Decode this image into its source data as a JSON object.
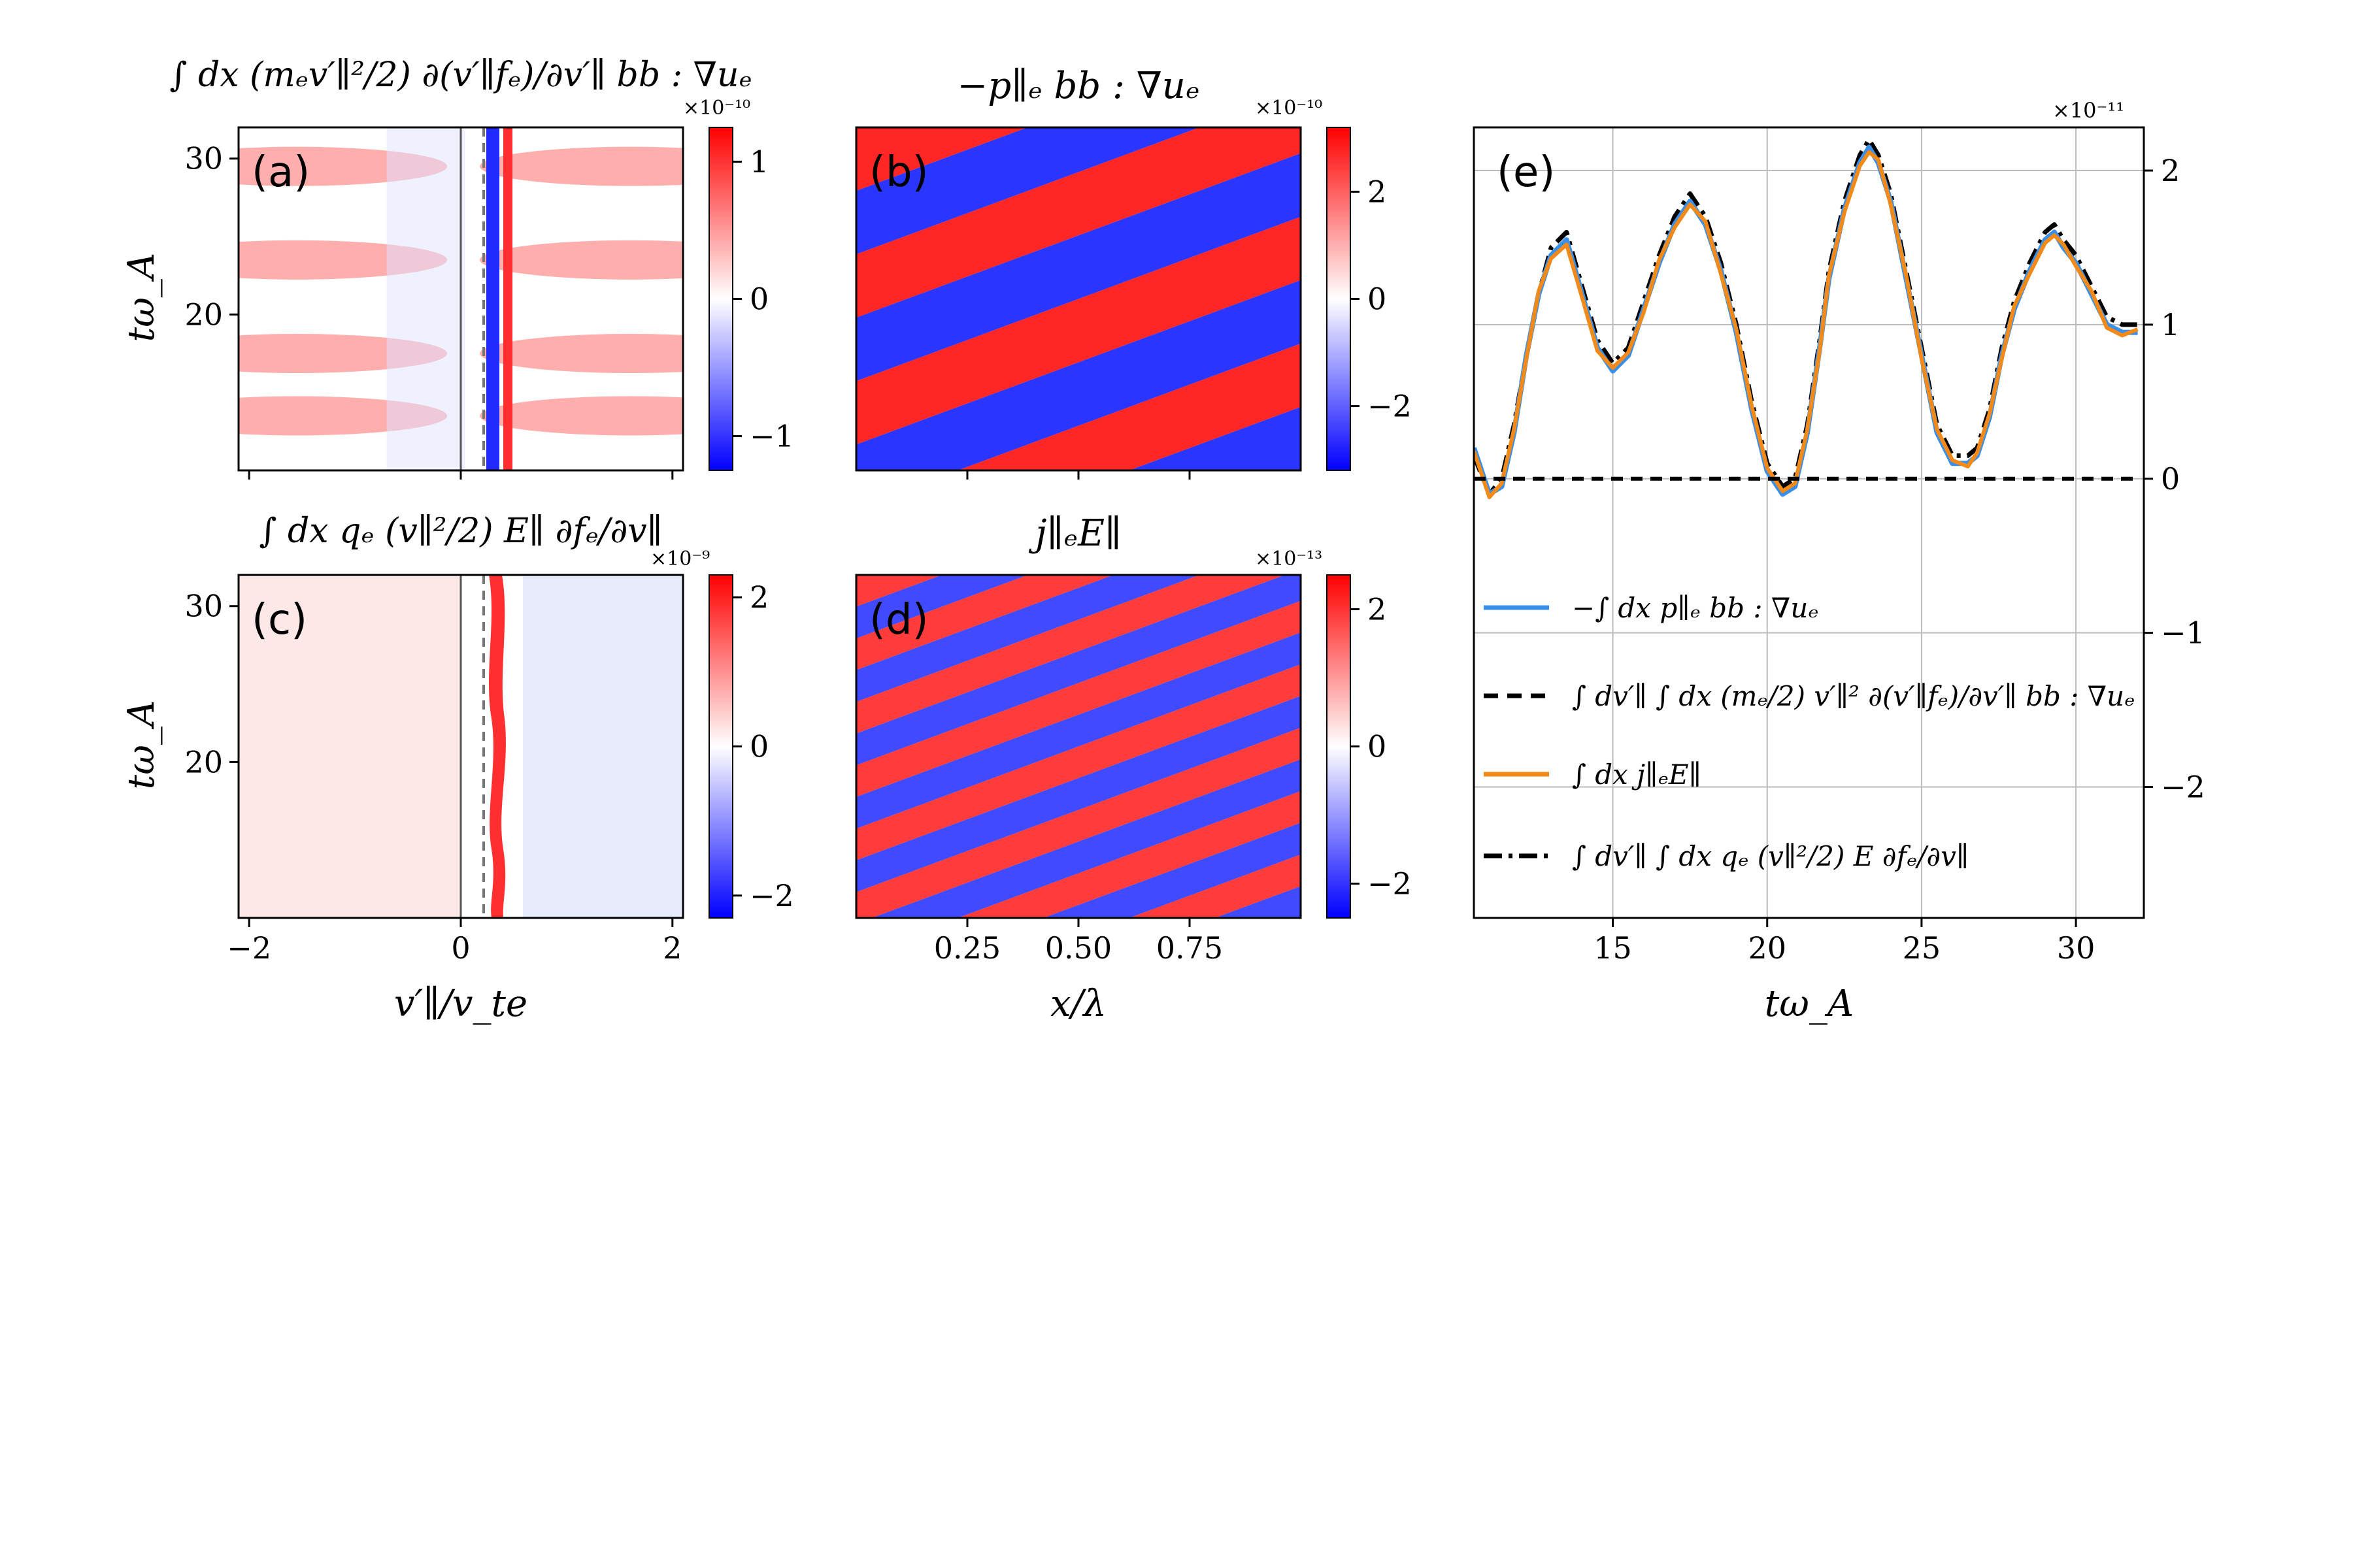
{
  "chart_data": [
    {
      "panel_label": "(a)",
      "type": "heatmap",
      "title": "∫ dx (mₑv′∥²/2) ∂(v′∥fₑ)/∂v′∥ bb : ∇uₑ",
      "xlabel": "",
      "ylabel": "tω_A",
      "xlim": [
        -2.1,
        2.1
      ],
      "ylim": [
        10,
        32
      ],
      "xticks": [
        -2,
        0,
        2
      ],
      "yticks": [
        20,
        30
      ],
      "xtick_labels": [
        "",
        "",
        ""
      ],
      "ytick_labels": [
        "20",
        "30"
      ],
      "colorbar": {
        "min": -1.25,
        "max": 1.25,
        "ticks": [
          -1,
          0,
          1
        ],
        "tick_labels": [
          "−1",
          "0",
          "1"
        ],
        "exponent_label": "×10⁻¹⁰",
        "colormap": "bwr"
      },
      "vlines": [
        {
          "x": 0,
          "style": "solid"
        },
        {
          "x": 0.25,
          "style": "dashed"
        }
      ],
      "peaks_t": [
        13.5,
        17.5,
        23.5,
        29.5
      ],
      "bands": [
        {
          "x_center": 0.33,
          "value_sign": -1
        },
        {
          "x_center": 0.45,
          "value_sign": 1
        }
      ]
    },
    {
      "panel_label": "(b)",
      "type": "heatmap",
      "title": "−p∥ₑ bb : ∇uₑ",
      "xlabel": "",
      "ylabel": "",
      "xlim": [
        0,
        1
      ],
      "ylim": [
        10,
        32
      ],
      "xticks": [
        0.25,
        0.5,
        0.75
      ],
      "xtick_labels": [
        "",
        "",
        ""
      ],
      "colorbar": {
        "min": -3.2,
        "max": 3.2,
        "ticks": [
          -2,
          0,
          2
        ],
        "tick_labels": [
          "−2",
          "0",
          "2"
        ],
        "exponent_label": "×10⁻¹⁰",
        "colormap": "bwr"
      },
      "pattern": {
        "kind": "oblique_stripes",
        "stripe_periods_visible": 4
      }
    },
    {
      "panel_label": "(c)",
      "type": "heatmap",
      "title": "∫ dx qₑ (v∥²/2) E∥ ∂fₑ/∂v∥",
      "xlabel": "v′∥/v_te",
      "ylabel": "tω_A",
      "xlim": [
        -2.1,
        2.1
      ],
      "ylim": [
        10,
        32
      ],
      "xticks": [
        -2,
        0,
        2
      ],
      "yticks": [
        20,
        30
      ],
      "xtick_labels": [
        "−2",
        "0",
        "2"
      ],
      "ytick_labels": [
        "20",
        "30"
      ],
      "colorbar": {
        "min": -2.3,
        "max": 2.3,
        "ticks": [
          -2,
          0,
          2
        ],
        "tick_labels": [
          "−2",
          "0",
          "2"
        ],
        "exponent_label": "×10⁻⁹",
        "colormap": "bwr"
      },
      "vlines": [
        {
          "x": 0,
          "style": "solid"
        },
        {
          "x": 0.25,
          "style": "dashed"
        }
      ],
      "bands": [
        {
          "x_center": 0.33,
          "value_sign": 1
        }
      ]
    },
    {
      "panel_label": "(d)",
      "type": "heatmap",
      "title": "j∥ₑE∥",
      "xlabel": "x/λ",
      "ylabel": "",
      "xlim": [
        0,
        1
      ],
      "ylim": [
        10,
        32
      ],
      "xticks": [
        0.25,
        0.5,
        0.75
      ],
      "xtick_labels": [
        "0.25",
        "0.50",
        "0.75"
      ],
      "colorbar": {
        "min": -2.5,
        "max": 2.5,
        "ticks": [
          -2,
          0,
          2
        ],
        "tick_labels": [
          "−2",
          "0",
          "2"
        ],
        "exponent_label": "×10⁻¹³",
        "colormap": "bwr"
      },
      "pattern": {
        "kind": "oblique_stripes",
        "stripe_periods_visible": 8
      }
    },
    {
      "panel_label": "(e)",
      "type": "line",
      "xlabel": "tω_A",
      "ylabel": "",
      "xlim": [
        10.5,
        32.2
      ],
      "ylim": [
        -2.85,
        2.28
      ],
      "xticks": [
        15,
        20,
        25,
        30
      ],
      "xtick_labels": [
        "15",
        "20",
        "25",
        "30"
      ],
      "yticks": [
        -2,
        -1,
        0,
        1,
        2
      ],
      "ytick_labels": [
        "−2",
        "−1",
        "0",
        "1",
        "2"
      ],
      "y_exponent_label": "×10⁻¹¹",
      "grid": true,
      "legend_location": "lower-left",
      "x": [
        10.5,
        11.0,
        11.4,
        11.8,
        12.2,
        12.6,
        13.0,
        13.5,
        14.0,
        14.5,
        15.0,
        15.5,
        16.0,
        16.5,
        17.0,
        17.5,
        18.0,
        18.5,
        19.0,
        19.5,
        20.0,
        20.5,
        20.9,
        21.3,
        21.7,
        22.0,
        22.5,
        23.0,
        23.3,
        23.6,
        24.0,
        24.5,
        25.0,
        25.5,
        26.0,
        26.5,
        26.8,
        27.2,
        27.6,
        28.0,
        28.5,
        29.0,
        29.3,
        29.6,
        30.0,
        30.5,
        31.0,
        31.5,
        32.0
      ],
      "series": [
        {
          "name": "−∫ dx p∥ₑ bb : ∇uₑ",
          "color": "#3a8fe8",
          "style": "solid",
          "values": [
            0.2,
            -0.1,
            -0.05,
            0.3,
            0.8,
            1.2,
            1.45,
            1.55,
            1.2,
            0.85,
            0.7,
            0.8,
            1.1,
            1.4,
            1.65,
            1.8,
            1.65,
            1.35,
            0.95,
            0.45,
            0.05,
            -0.1,
            -0.05,
            0.3,
            0.85,
            1.3,
            1.75,
            2.05,
            2.15,
            2.05,
            1.8,
            1.3,
            0.8,
            0.3,
            0.1,
            0.1,
            0.15,
            0.4,
            0.8,
            1.1,
            1.35,
            1.55,
            1.6,
            1.5,
            1.4,
            1.2,
            1.0,
            0.95,
            0.95
          ]
        },
        {
          "name": "∫ dv′∥ ∫ dx (mₑ/2) v′∥² ∂(v′∥fₑ)/∂v′∥ bb : ∇uₑ",
          "color": "#000000",
          "style": "dashed",
          "values": [
            0.0,
            0.0,
            0.0,
            0.0,
            0.0,
            0.0,
            0.0,
            0.0,
            0.0,
            0.0,
            0.0,
            0.0,
            0.0,
            0.0,
            0.0,
            0.0,
            0.0,
            0.0,
            0.0,
            0.0,
            0.0,
            0.0,
            0.0,
            0.0,
            0.0,
            0.0,
            0.0,
            0.0,
            0.0,
            0.0,
            0.0,
            0.0,
            0.0,
            0.0,
            0.0,
            0.0,
            0.0,
            0.0,
            0.0,
            0.0,
            0.0,
            0.0,
            0.0,
            0.0,
            0.0,
            0.0,
            0.0,
            0.0,
            0.0
          ]
        },
        {
          "name": "∫ dx j∥ₑE∥",
          "color": "#f28a1a",
          "style": "solid",
          "values": [
            0.18,
            -0.12,
            -0.03,
            0.32,
            0.78,
            1.22,
            1.43,
            1.52,
            1.18,
            0.83,
            0.72,
            0.82,
            1.08,
            1.42,
            1.63,
            1.78,
            1.67,
            1.33,
            0.97,
            0.47,
            0.07,
            -0.08,
            -0.03,
            0.32,
            0.83,
            1.32,
            1.73,
            2.03,
            2.12,
            2.07,
            1.78,
            1.32,
            0.78,
            0.32,
            0.12,
            0.08,
            0.17,
            0.42,
            0.78,
            1.12,
            1.33,
            1.53,
            1.58,
            1.52,
            1.38,
            1.22,
            0.98,
            0.93,
            0.97
          ]
        },
        {
          "name": "∫ dv′∥ ∫ dx qₑ (v∥²/2) E ∂fₑ/∂v∥",
          "color": "#000000",
          "style": "dashdot",
          "values": [
            0.15,
            -0.1,
            0.0,
            0.35,
            0.8,
            1.2,
            1.5,
            1.6,
            1.25,
            0.9,
            0.75,
            0.85,
            1.15,
            1.45,
            1.7,
            1.85,
            1.7,
            1.4,
            1.0,
            0.5,
            0.1,
            -0.05,
            0.0,
            0.35,
            0.9,
            1.35,
            1.8,
            2.1,
            2.2,
            2.1,
            1.85,
            1.35,
            0.85,
            0.35,
            0.15,
            0.15,
            0.2,
            0.45,
            0.85,
            1.15,
            1.4,
            1.6,
            1.65,
            1.55,
            1.45,
            1.25,
            1.05,
            1.0,
            1.0
          ]
        }
      ]
    }
  ]
}
